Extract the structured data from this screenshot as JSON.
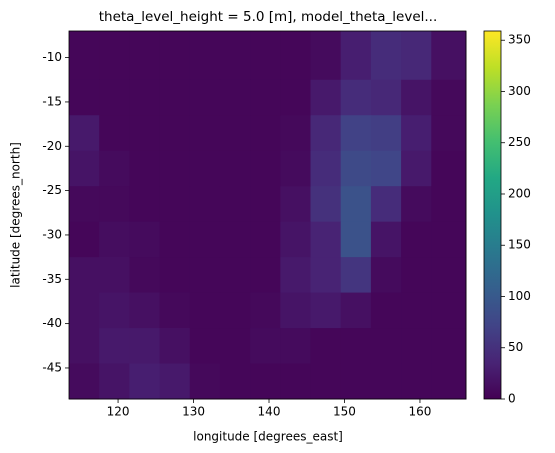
{
  "chart_data": {
    "type": "heatmap",
    "title": "theta_level_height = 5.0 [m], model_theta_level...",
    "xlabel": "longitude [degrees_east]",
    "ylabel": "latitude [degrees_north]",
    "colormap": "viridis",
    "x": [
      115.5,
      119.5,
      123.5,
      127.5,
      131.5,
      135.5,
      139.5,
      143.5,
      147.5,
      151.5,
      155.5,
      159.5,
      163.5
    ],
    "y": [
      -10.5,
      -14.5,
      -18.5,
      -22.5,
      -26.5,
      -30.5,
      -34.5,
      -38.5,
      -42.5,
      -46.5
    ],
    "z": [
      [
        5,
        5,
        5,
        5,
        5,
        5,
        5,
        5,
        10,
        30,
        45,
        40,
        15
      ],
      [
        5,
        5,
        5,
        5,
        5,
        5,
        5,
        5,
        25,
        45,
        40,
        20,
        8
      ],
      [
        25,
        5,
        5,
        5,
        5,
        5,
        5,
        8,
        40,
        70,
        65,
        30,
        8
      ],
      [
        20,
        10,
        5,
        5,
        5,
        5,
        5,
        10,
        45,
        80,
        75,
        25,
        5
      ],
      [
        8,
        8,
        5,
        5,
        5,
        5,
        5,
        15,
        50,
        90,
        45,
        10,
        5
      ],
      [
        5,
        12,
        10,
        5,
        5,
        5,
        5,
        20,
        35,
        90,
        20,
        5,
        5
      ],
      [
        15,
        15,
        8,
        5,
        5,
        5,
        5,
        25,
        35,
        55,
        10,
        5,
        5
      ],
      [
        15,
        20,
        15,
        8,
        5,
        5,
        8,
        20,
        25,
        15,
        5,
        5,
        5
      ],
      [
        15,
        25,
        25,
        15,
        5,
        5,
        10,
        10,
        5,
        5,
        5,
        5,
        5
      ],
      [
        10,
        20,
        30,
        25,
        8,
        5,
        5,
        5,
        5,
        5,
        5,
        5,
        5
      ]
    ],
    "xlim": [
      113.5,
      166.1
    ],
    "ylim": [
      -48.5,
      -7
    ],
    "xticks": [
      120,
      130,
      140,
      150,
      160
    ],
    "yticks": [
      -45,
      -40,
      -35,
      -30,
      -25,
      -20,
      -15,
      -10
    ],
    "clim": [
      0,
      359
    ],
    "cticks": [
      0,
      50,
      100,
      150,
      200,
      250,
      300,
      350
    ]
  }
}
